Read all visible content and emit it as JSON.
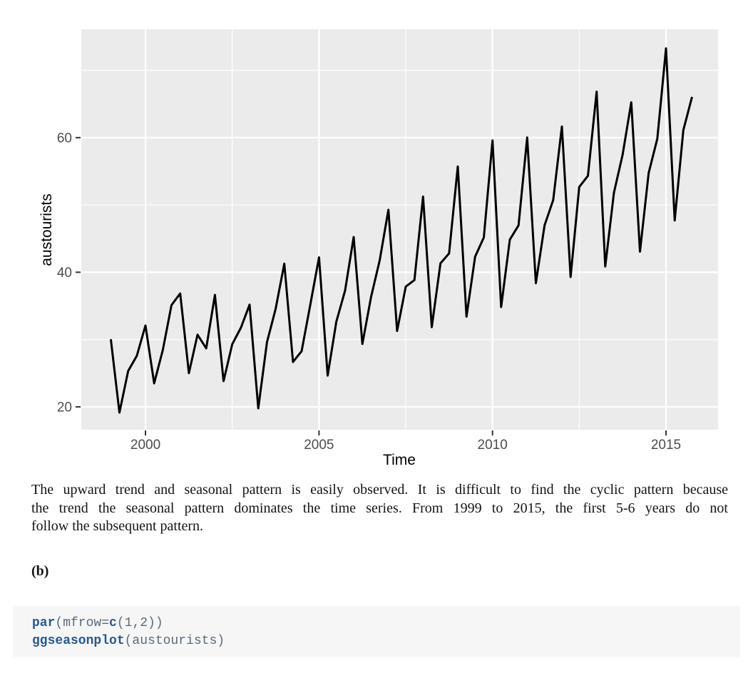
{
  "page": {
    "background": "#ffffff"
  },
  "chart_data": {
    "type": "line",
    "title": "",
    "xlabel": "Time",
    "ylabel": "austourists",
    "series_name": "austourists",
    "x_start": 1999.0,
    "x_step": 0.25,
    "frequency": "quarterly",
    "values": [
      30.05,
      19.15,
      25.32,
      27.59,
      32.08,
      23.49,
      28.48,
      35.12,
      36.84,
      25.01,
      30.72,
      28.69,
      36.64,
      23.82,
      29.31,
      31.77,
      35.18,
      19.78,
      29.6,
      34.54,
      41.27,
      26.66,
      28.28,
      35.19,
      42.21,
      24.65,
      32.67,
      37.26,
      45.24,
      29.35,
      36.34,
      41.78,
      49.28,
      31.28,
      37.85,
      38.84,
      51.24,
      31.84,
      41.32,
      42.8,
      55.71,
      33.41,
      42.32,
      45.16,
      59.58,
      34.84,
      44.84,
      46.97,
      60.02,
      38.37,
      46.98,
      50.73,
      61.65,
      39.3,
      52.67,
      54.33,
      66.83,
      40.87,
      51.83,
      57.49,
      65.25,
      43.06,
      54.76,
      59.83,
      73.26,
      47.7,
      61.1,
      66.06
    ],
    "x_ticks": [
      2000,
      2005,
      2010,
      2015
    ],
    "y_ticks": [
      20,
      40,
      60
    ],
    "x_minor_ticks": [
      2002.5,
      2007.5,
      2012.5
    ],
    "y_minor_ticks": [
      30,
      50,
      70
    ],
    "x_domain": [
      1998.15,
      2016.5
    ],
    "y_domain": [
      16.6,
      76.1
    ],
    "grid": true,
    "legend": "none",
    "panel_background": "#ebebeb",
    "grid_color": "#ffffff",
    "line_color": "#000000",
    "tick_color": "#333333",
    "tick_label_color": "#4d4d4d"
  },
  "commentary": {
    "lines": [
      "The upward trend and seasonal pattern is easily observed. It is difficult to find the cyclic pattern because",
      "the trend the seasonal pattern dominates the time series. From 1999 to 2015, the first 5-6 years do not",
      "follow the subsequent pattern."
    ]
  },
  "section_label": "(b)",
  "code_block": {
    "background": "#f6f6f6",
    "token_colors": {
      "function": "#29588c",
      "default": "#5a6b7c"
    },
    "lines": [
      [
        {
          "text": "par",
          "type": "function"
        },
        {
          "text": "(mfrow=",
          "type": "default"
        },
        {
          "text": "c",
          "type": "function"
        },
        {
          "text": "(1,2))",
          "type": "default"
        }
      ],
      [
        {
          "text": "ggseasonplot",
          "type": "function"
        },
        {
          "text": "(austourists)",
          "type": "default"
        }
      ]
    ]
  }
}
